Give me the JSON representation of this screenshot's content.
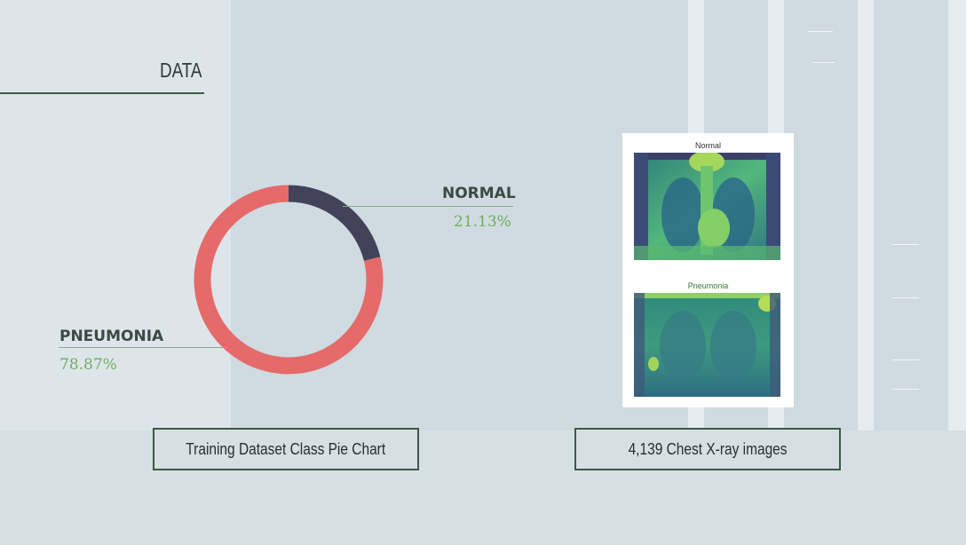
{
  "section": {
    "title": "DATA"
  },
  "chart_data": {
    "type": "pie",
    "style": "donut",
    "categories": [
      "NORMAL",
      "PNEUMONIA"
    ],
    "values": [
      21.13,
      78.87
    ],
    "labels": [
      "21.13%",
      "78.87%"
    ],
    "colors": [
      "#42425a",
      "#e56a6a"
    ]
  },
  "legend": {
    "normal": {
      "name": "NORMAL",
      "pct": "21.13%"
    },
    "pneumonia": {
      "name": "PNEUMONIA",
      "pct": "78.87%"
    }
  },
  "samples": {
    "normal_title": "Normal",
    "pneumonia_title": "Pneumonia"
  },
  "captions": {
    "chart": "Training Dataset Class Pie Chart",
    "images": "4,139 Chest X-ray images"
  },
  "colors": {
    "accent_green": "#3b5a42",
    "pct_green": "#6fae5a"
  }
}
